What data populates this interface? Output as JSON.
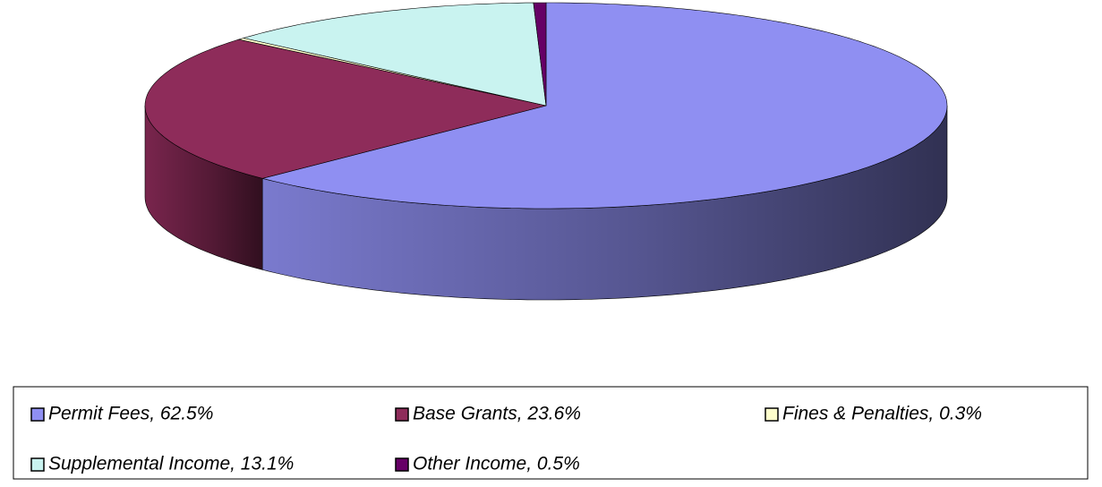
{
  "chart_data": {
    "type": "pie3d",
    "values": [
      62.5,
      23.6,
      0.3,
      13.1,
      0.5
    ],
    "value_labels": [
      "Permit Fees, 62.5%",
      "Base Grants, 23.6%",
      "Fines & Penalties, 0.3%",
      "Supplemental Income, 13.1%",
      "Other Income, 0.5%"
    ],
    "colors": [
      "#8f8ff2",
      "#8e2c5a",
      "#ffffcc",
      "#c9f3f0",
      "#660066"
    ],
    "legend": "bottom"
  }
}
